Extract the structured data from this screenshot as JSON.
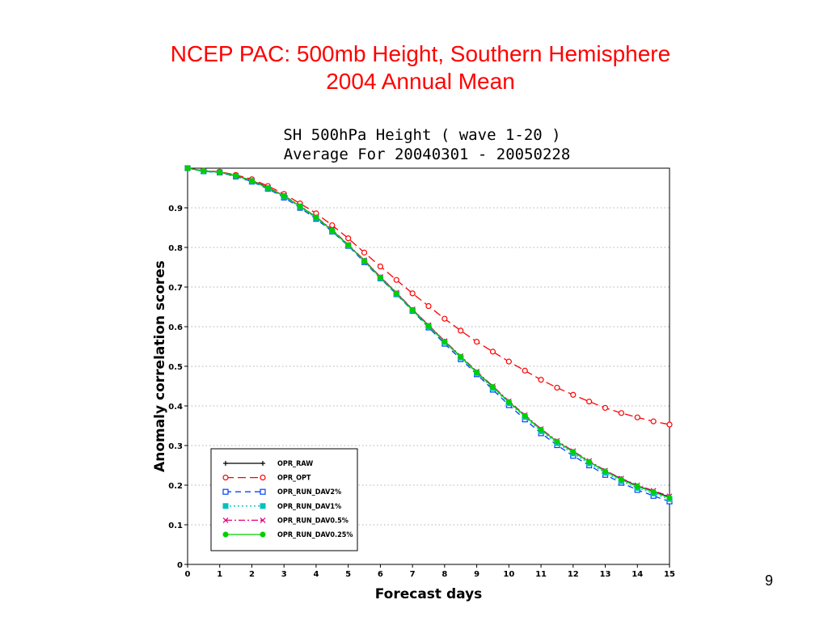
{
  "slide": {
    "title_line1": "NCEP PAC: 500mb Height, Southern Hemisphere",
    "title_line2": "2004 Annual Mean",
    "page_number": "9"
  },
  "chart_data": {
    "type": "line",
    "title": "SH 500hPa Height ( wave 1-20 )",
    "subtitle": "Average For 20040301 - 20050228",
    "xlabel": "Forecast days",
    "ylabel": "Anomaly correlation scores",
    "xlim": [
      0,
      15
    ],
    "ylim": [
      0,
      1
    ],
    "xticks": [
      "0",
      "1",
      "2",
      "3",
      "4",
      "5",
      "6",
      "7",
      "8",
      "9",
      "10",
      "11",
      "12",
      "13",
      "14",
      "15"
    ],
    "yticks": [
      "0",
      "0.1",
      "0.2",
      "0.3",
      "0.4",
      "0.5",
      "0.6",
      "0.7",
      "0.8",
      "0.9"
    ],
    "grid": "dotted",
    "legend_position": "bottom-left",
    "x": [
      0,
      0.5,
      1,
      1.5,
      2,
      2.5,
      3,
      3.5,
      4,
      4.5,
      5,
      5.5,
      6,
      6.5,
      7,
      7.5,
      8,
      8.5,
      9,
      9.5,
      10,
      10.5,
      11,
      11.5,
      12,
      12.5,
      13,
      13.5,
      14,
      14.5,
      15
    ],
    "series": [
      {
        "name": "OPR_RAW",
        "color": "#000000",
        "marker": "plus",
        "dash": "solid",
        "values": [
          1.0,
          0.993,
          0.99,
          0.981,
          0.969,
          0.951,
          0.93,
          0.904,
          0.876,
          0.843,
          0.806,
          0.767,
          0.725,
          0.685,
          0.643,
          0.603,
          0.563,
          0.524,
          0.485,
          0.448,
          0.41,
          0.375,
          0.34,
          0.31,
          0.284,
          0.259,
          0.235,
          0.216,
          0.198,
          0.184,
          0.17
        ]
      },
      {
        "name": "OPR_OPT",
        "color": "#ff0000",
        "marker": "circle",
        "dash": "longdash",
        "values": [
          1.0,
          0.994,
          0.991,
          0.983,
          0.972,
          0.955,
          0.935,
          0.911,
          0.886,
          0.856,
          0.823,
          0.787,
          0.752,
          0.718,
          0.684,
          0.652,
          0.62,
          0.59,
          0.562,
          0.537,
          0.512,
          0.489,
          0.466,
          0.446,
          0.428,
          0.411,
          0.395,
          0.382,
          0.371,
          0.361,
          0.353
        ]
      },
      {
        "name": "OPR_RUN_DAV2%",
        "color": "#0040ff",
        "marker": "square",
        "dash": "dash",
        "values": [
          1.0,
          0.992,
          0.989,
          0.979,
          0.966,
          0.948,
          0.926,
          0.9,
          0.872,
          0.84,
          0.804,
          0.763,
          0.722,
          0.682,
          0.64,
          0.598,
          0.557,
          0.518,
          0.48,
          0.441,
          0.402,
          0.366,
          0.331,
          0.301,
          0.274,
          0.25,
          0.226,
          0.206,
          0.188,
          0.173,
          0.159
        ]
      },
      {
        "name": "OPR_RUN_DAV1%",
        "color": "#00c0c0",
        "marker": "filledsquare",
        "dash": "dot",
        "values": [
          1.0,
          0.992,
          0.989,
          0.98,
          0.967,
          0.949,
          0.928,
          0.902,
          0.874,
          0.841,
          0.805,
          0.765,
          0.723,
          0.683,
          0.641,
          0.601,
          0.561,
          0.522,
          0.483,
          0.445,
          0.407,
          0.372,
          0.336,
          0.306,
          0.28,
          0.255,
          0.231,
          0.21,
          0.193,
          0.179,
          0.165
        ]
      },
      {
        "name": "OPR_RUN_DAV0.5%",
        "color": "#e0007c",
        "marker": "x",
        "dash": "dashdot",
        "values": [
          1.0,
          0.993,
          0.99,
          0.981,
          0.969,
          0.951,
          0.931,
          0.905,
          0.877,
          0.845,
          0.807,
          0.768,
          0.726,
          0.686,
          0.644,
          0.604,
          0.564,
          0.526,
          0.487,
          0.45,
          0.412,
          0.377,
          0.342,
          0.312,
          0.286,
          0.261,
          0.237,
          0.217,
          0.2,
          0.186,
          0.172
        ]
      },
      {
        "name": "OPR_RUN_DAV0.25%",
        "color": "#00d000",
        "marker": "filledcircle",
        "dash": "solid",
        "values": [
          1.0,
          0.993,
          0.99,
          0.981,
          0.968,
          0.95,
          0.93,
          0.904,
          0.876,
          0.843,
          0.806,
          0.766,
          0.724,
          0.684,
          0.642,
          0.602,
          0.562,
          0.524,
          0.485,
          0.448,
          0.41,
          0.375,
          0.34,
          0.31,
          0.284,
          0.259,
          0.235,
          0.214,
          0.197,
          0.183,
          0.168
        ]
      }
    ]
  }
}
